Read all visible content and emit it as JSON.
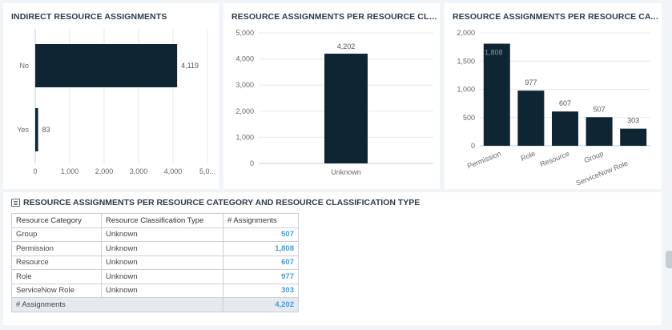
{
  "panels": {
    "indirect": {
      "title": "INDIRECT RESOURCE ASSIGNMENTS"
    },
    "classification": {
      "title": "RESOURCE ASSIGNMENTS PER RESOURCE CLASSIFIC..."
    },
    "category": {
      "title": "RESOURCE ASSIGNMENTS PER RESOURCE CATEGORY"
    }
  },
  "chart_data": [
    {
      "type": "bar",
      "orientation": "horizontal",
      "title": "INDIRECT RESOURCE ASSIGNMENTS",
      "categories": [
        "No",
        "Yes"
      ],
      "values": [
        4119,
        83
      ],
      "value_labels": [
        "4,119",
        "83"
      ],
      "xlim": [
        0,
        5000
      ],
      "ticks": [
        "0",
        "1,000",
        "2,000",
        "3,000",
        "4,000",
        "5,0..."
      ],
      "grid": true,
      "color": "#0e2533"
    },
    {
      "type": "bar",
      "title": "RESOURCE ASSIGNMENTS PER RESOURCE CLASSIFIC...",
      "categories": [
        "Unknown"
      ],
      "values": [
        4202
      ],
      "value_labels": [
        "4,202"
      ],
      "ylim": [
        0,
        5000
      ],
      "ticks": [
        "0",
        "1,000",
        "2,000",
        "3,000",
        "4,000",
        "5,000"
      ],
      "grid": true,
      "color": "#0e2533"
    },
    {
      "type": "bar",
      "title": "RESOURCE ASSIGNMENTS PER RESOURCE CATEGORY",
      "categories": [
        "Permission",
        "Role",
        "Resource",
        "Group",
        "ServiceNow Role"
      ],
      "values": [
        1808,
        977,
        607,
        507,
        303
      ],
      "value_labels": [
        "1,808",
        "977",
        "607",
        "507",
        "303"
      ],
      "ylim": [
        0,
        2000
      ],
      "ticks": [
        "0",
        "500",
        "1,000",
        "1,500",
        "2,000"
      ],
      "grid": true,
      "color": "#0e2533"
    }
  ],
  "table": {
    "title": "RESOURCE ASSIGNMENTS PER RESOURCE CATEGORY AND RESOURCE CLASSIFICATION TYPE",
    "headers": [
      "Resource Category",
      "Resource Classification Type",
      "# Assignments"
    ],
    "rows": [
      [
        "Group",
        "Unknown",
        "507"
      ],
      [
        "Permission",
        "Unknown",
        "1,808"
      ],
      [
        "Resource",
        "Unknown",
        "607"
      ],
      [
        "Role",
        "Unknown",
        "977"
      ],
      [
        "ServiceNow Role",
        "Unknown",
        "303"
      ]
    ],
    "total": {
      "label": "# Assignments",
      "value": "4,202"
    }
  }
}
